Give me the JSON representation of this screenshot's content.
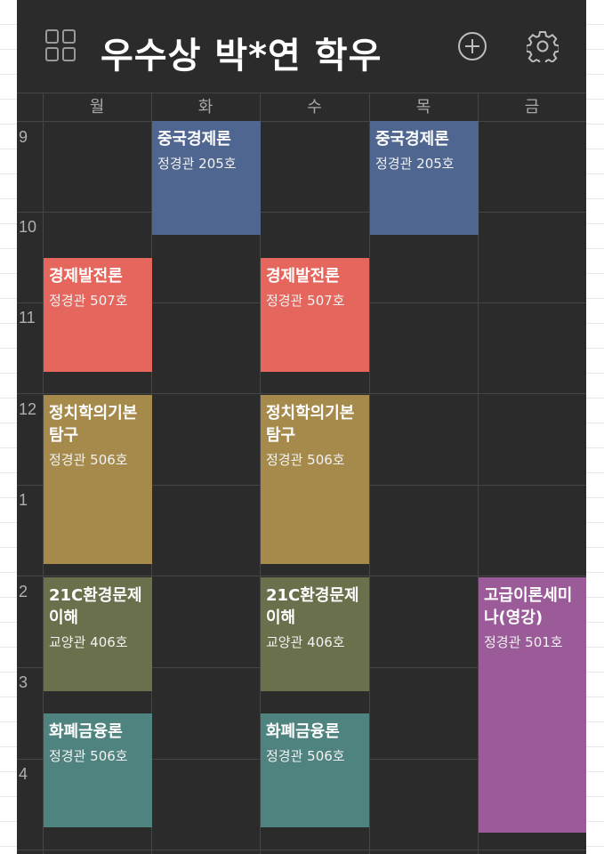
{
  "header": {
    "title": "우수상 박*연 학우",
    "menu_icon": "grid-icon",
    "add_icon": "plus-circle-icon",
    "settings_icon": "gear-icon"
  },
  "days": [
    "월",
    "화",
    "수",
    "목",
    "금"
  ],
  "hours": [
    "9",
    "10",
    "11",
    "12",
    "1",
    "2",
    "3",
    "4"
  ],
  "colors": {
    "background": "#2b2b2b",
    "gridline": "#454545",
    "blue": "#4f6690",
    "red": "#e5665c",
    "gold": "#a68a4c",
    "olive": "#6a704b",
    "teal": "#4f837f",
    "purple": "#9a5b98"
  },
  "classes": [
    {
      "id": "c1",
      "name": "중국경제론",
      "room": "정경관 205호",
      "day": 1,
      "start": 9.0,
      "end": 10.25,
      "color": "blue"
    },
    {
      "id": "c2",
      "name": "중국경제론",
      "room": "정경관 205호",
      "day": 3,
      "start": 9.0,
      "end": 10.25,
      "color": "blue"
    },
    {
      "id": "c3",
      "name": "경제발전론",
      "room": "정경관 507호",
      "day": 0,
      "start": 10.5,
      "end": 11.75,
      "color": "red"
    },
    {
      "id": "c4",
      "name": "경제발전론",
      "room": "정경관 507호",
      "day": 2,
      "start": 10.5,
      "end": 11.75,
      "color": "red"
    },
    {
      "id": "c5",
      "name": "정치학의기본탐구",
      "room": "정경관 506호",
      "day": 0,
      "start": 12.0,
      "end": 13.85,
      "color": "gold"
    },
    {
      "id": "c6",
      "name": "정치학의기본탐구",
      "room": "정경관 506호",
      "day": 2,
      "start": 12.0,
      "end": 13.85,
      "color": "gold"
    },
    {
      "id": "c7",
      "name": "21C환경문제이해",
      "room": "교양관 406호",
      "day": 0,
      "start": 14.0,
      "end": 15.25,
      "color": "olive"
    },
    {
      "id": "c8",
      "name": "21C환경문제이해",
      "room": "교양관 406호",
      "day": 2,
      "start": 14.0,
      "end": 15.25,
      "color": "olive"
    },
    {
      "id": "c9",
      "name": "화폐금융론",
      "room": "정경관 506호",
      "day": 0,
      "start": 15.5,
      "end": 16.75,
      "color": "teal"
    },
    {
      "id": "c10",
      "name": "화폐금융론",
      "room": "정경관 506호",
      "day": 2,
      "start": 15.5,
      "end": 16.75,
      "color": "teal"
    },
    {
      "id": "c11",
      "name": "고급이론세미나(영강)",
      "room": "정경관 501호",
      "day": 4,
      "start": 14.0,
      "end": 16.8,
      "color": "purple"
    }
  ]
}
